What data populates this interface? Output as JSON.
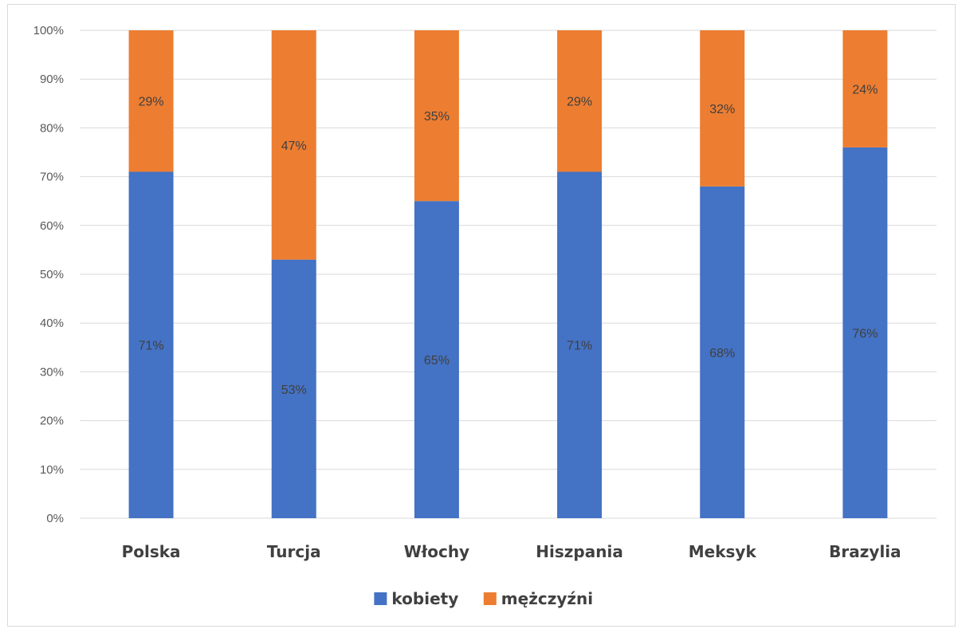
{
  "chart_data": {
    "type": "bar",
    "stacked": true,
    "percent_stacked": true,
    "title": "",
    "xlabel": "",
    "ylabel": "",
    "ylim": [
      0,
      100
    ],
    "yticks": [
      "0%",
      "10%",
      "20%",
      "30%",
      "40%",
      "50%",
      "60%",
      "70%",
      "80%",
      "90%",
      "100%"
    ],
    "categories": [
      "Polska",
      "Turcja",
      "Włochy",
      "Hiszpania",
      "Meksyk",
      "Brazylia"
    ],
    "series": [
      {
        "name": "kobiety",
        "color": "#4472c4",
        "values": [
          71,
          53,
          65,
          71,
          68,
          76
        ],
        "labels": [
          "71%",
          "53%",
          "65%",
          "71%",
          "68%",
          "76%"
        ]
      },
      {
        "name": "mężczyźni",
        "color": "#ed7d31",
        "values": [
          29,
          47,
          35,
          29,
          32,
          24
        ],
        "labels": [
          "29%",
          "47%",
          "35%",
          "29%",
          "32%",
          "24%"
        ]
      }
    ],
    "grid": true,
    "legend": "bottom"
  }
}
